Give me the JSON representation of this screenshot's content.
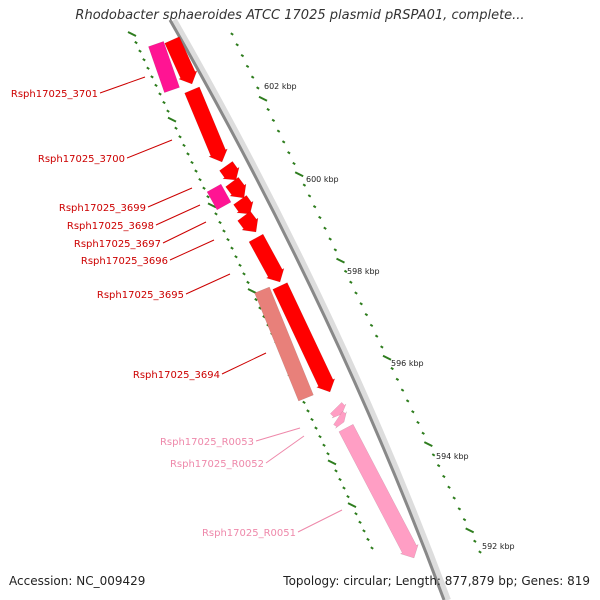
{
  "title": "Rhodobacter sphaeroides ATCC 17025 plasmid pRSPA01, complete...",
  "footer": {
    "accession": "Accession: NC_009429",
    "summary": "Topology: circular; Length: 877,879 bp; Genes: 819"
  },
  "colors": {
    "backbone": "#8a8a8a",
    "tick": "#2e7d1e",
    "gene_forward": "#ff0000",
    "gene_reverse": "#ff1493",
    "pseudo": "#e8807a",
    "rna": "#ff9ec4",
    "label_red": "#cc0000",
    "label_pink": "#ee88aa"
  },
  "scale_labels": [
    "602 kbp",
    "600 kbp",
    "598 kbp",
    "596 kbp",
    "594 kbp",
    "592 kbp"
  ],
  "genes": [
    {
      "label": "Rsph17025_3701",
      "kind": "reverse"
    },
    {
      "label": "Rsph17025_3700",
      "kind": "forward"
    },
    {
      "label": "Rsph17025_3699",
      "kind": "reverse"
    },
    {
      "label": "Rsph17025_3698",
      "kind": "forward"
    },
    {
      "label": "Rsph17025_3697",
      "kind": "forward"
    },
    {
      "label": "Rsph17025_3696",
      "kind": "forward"
    },
    {
      "label": "Rsph17025_3695",
      "kind": "forward"
    },
    {
      "label": "Rsph17025_3694",
      "kind": "pseudo"
    },
    {
      "label": "Rsph17025_R0053",
      "kind": "rna"
    },
    {
      "label": "Rsph17025_R0052",
      "kind": "rna"
    },
    {
      "label": "Rsph17025_R0051",
      "kind": "rna"
    }
  ]
}
